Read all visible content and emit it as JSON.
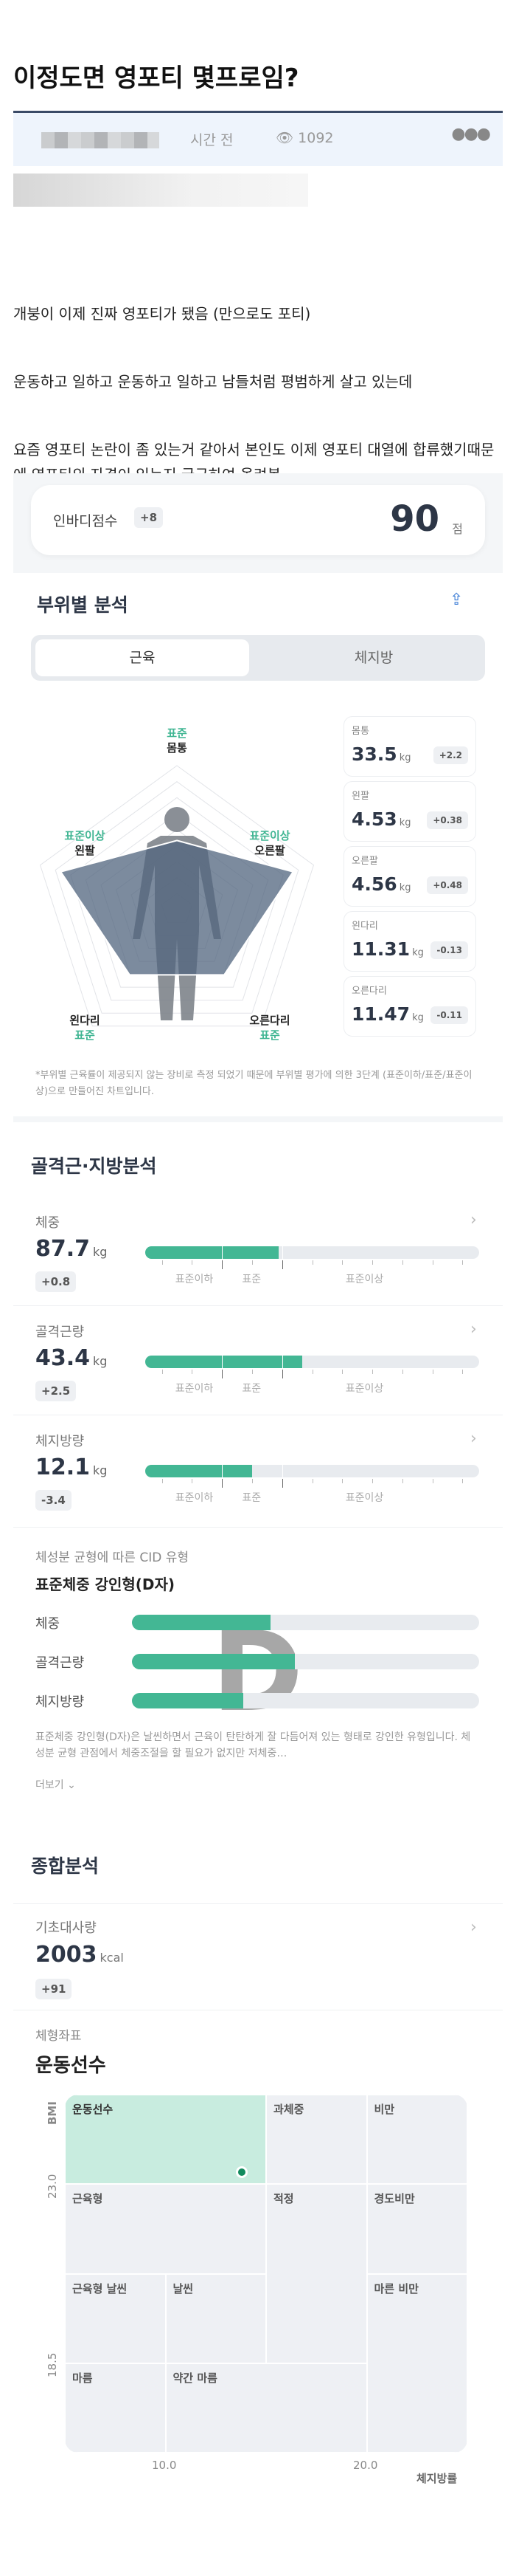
{
  "post": {
    "title": "이정도면 영포티 몇프로임?",
    "time": "시간 전",
    "views": "1092",
    "more_icon": "ellipsis-icon",
    "paragraphs": [
      "개붕이 이제 진짜 영포티가 됐음 (만으로도 포티)",
      "운동하고 일하고 운동하고 일하고 남들처럼 평범하게 살고 있는데",
      "요즘 영포티 논란이 좀 있는거 같아서 본인도 이제 영포티 대열에 합류했기때문에 영포티의 자격이 있는지 궁금하여 올려봄"
    ]
  },
  "score": {
    "label": "인바디점수",
    "delta": "+8",
    "value": "90",
    "unit": "점"
  },
  "segmental": {
    "title": "부위별 분석",
    "share_icon": "share-icon",
    "tabs": [
      "근육",
      "체지방"
    ],
    "active_tab": "근육",
    "radar_labels": [
      {
        "part": "몸통",
        "status": "표준",
        "level": 0.48
      },
      {
        "part": "오른팔",
        "status": "표준이상",
        "level": 0.85
      },
      {
        "part": "오른다리",
        "status": "표준",
        "level": 0.56
      },
      {
        "part": "왼다리",
        "status": "표준",
        "level": 0.56
      },
      {
        "part": "왼팔",
        "status": "표준이상",
        "level": 0.85
      }
    ],
    "cards": [
      {
        "name": "몸통",
        "value": "33.5",
        "unit": "kg",
        "delta": "+2.2"
      },
      {
        "name": "왼팔",
        "value": "4.53",
        "unit": "kg",
        "delta": "+0.38"
      },
      {
        "name": "오른팔",
        "value": "4.56",
        "unit": "kg",
        "delta": "+0.48"
      },
      {
        "name": "왼다리",
        "value": "11.31",
        "unit": "kg",
        "delta": "-0.13"
      },
      {
        "name": "오른다리",
        "value": "11.47",
        "unit": "kg",
        "delta": "-0.11"
      }
    ],
    "note": "*부위별 근육률이 제공되지 않는 장비로 측정 되었기 때문에 부위별 평가에 의한 3단계 (표준이하/표준/표준이상)으로 만들어진 차트입니다."
  },
  "muscle_fat": {
    "title": "골격근·지방분석",
    "scale_labels": [
      "표준이하",
      "표준",
      "표준이상"
    ],
    "rows": [
      {
        "label": "체중",
        "value": "87.7",
        "unit": "kg",
        "delta": "+0.8",
        "fill": 0.4
      },
      {
        "label": "골격근량",
        "value": "43.4",
        "unit": "kg",
        "delta": "+2.5",
        "fill": 0.47
      },
      {
        "label": "체지방량",
        "value": "12.1",
        "unit": "kg",
        "delta": "-3.4",
        "fill": 0.32
      }
    ]
  },
  "cid": {
    "subtitle": "체성분 균형에 따른 CID 유형",
    "title": "표준체중 강인형(D자)",
    "letter": "D",
    "bars": [
      {
        "label": "체중",
        "fill": 0.4
      },
      {
        "label": "골격근량",
        "fill": 0.47
      },
      {
        "label": "체지방량",
        "fill": 0.32
      }
    ],
    "description": "표준체중 강인형(D자)은 날씬하면서 근육이 탄탄하게 잘 다듬어져 있는 형태로 강인한 유형입니다. 체성분 균형 관점에서 체중조절을 할 필요가 없지만 저체중…",
    "more_label": "더보기"
  },
  "overall": {
    "title": "종합분석",
    "bmr": {
      "label": "기초대사량",
      "value": "2003",
      "unit": "kcal",
      "delta": "+91"
    },
    "body_type_label": "체형좌표",
    "body_type": "운동선수"
  },
  "chart_data": {
    "type": "scatter",
    "xlabel": "체지방률",
    "ylabel": "BMI",
    "xlim": [
      5,
      25
    ],
    "ylim": [
      16.25,
      25.25
    ],
    "x_ticks": [
      "10.0",
      "20.0"
    ],
    "y_ticks": [
      "23.0",
      "18.5"
    ],
    "point": {
      "x": 13.8,
      "y": 23.3
    },
    "highlight_color": "#c8ecdf",
    "point_color": "#138a5e",
    "regions": [
      {
        "label": "운동선수",
        "highlighted": true
      },
      {
        "label": "과체중"
      },
      {
        "label": "비만"
      },
      {
        "label": "근육형"
      },
      {
        "label": "적정"
      },
      {
        "label": "경도비만"
      },
      {
        "label": "근육형 날씬"
      },
      {
        "label": "날씬"
      },
      {
        "label": "마른 비만"
      },
      {
        "label": "마름"
      },
      {
        "label": "약간 마름"
      }
    ]
  }
}
